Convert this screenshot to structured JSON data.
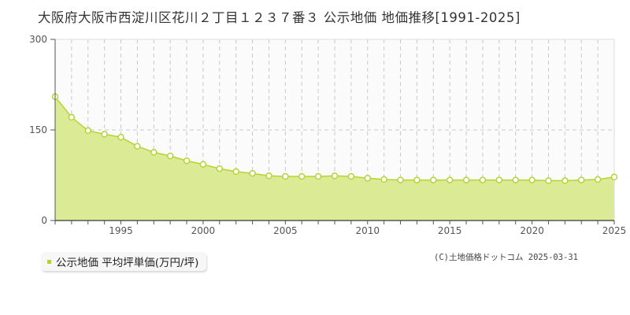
{
  "title": "大阪府大阪市西淀川区花川２丁目１２３７番３ 公示地価 地価推移[1991-2025]",
  "legend": {
    "label": "公示地価 平均坪単価(万円/坪)",
    "color": "#b5d335"
  },
  "copyright": "(C)土地価格ドットコム 2025-03-31",
  "colors": {
    "fill": "#dbeb95",
    "line": "#b5d335",
    "grid": "#c8c8c8",
    "axis": "#555555",
    "plot_bg": "#fbfbfb"
  },
  "chart_data": {
    "type": "area",
    "title": "大阪府大阪市西淀川区花川２丁目１２３７番３ 公示地価 地価推移[1991-2025]",
    "xlabel": "",
    "ylabel": "",
    "ylim": [
      0,
      300
    ],
    "xlim": [
      1991,
      2025
    ],
    "yticks": [
      0,
      150,
      300
    ],
    "xticks": [
      1995,
      2000,
      2005,
      2010,
      2015,
      2020,
      2025
    ],
    "grid": true,
    "legend_position": "bottom-left",
    "series": [
      {
        "name": "公示地価 平均坪単価(万円/坪)",
        "x": [
          1991,
          1992,
          1993,
          1994,
          1995,
          1996,
          1997,
          1998,
          1999,
          2000,
          2001,
          2002,
          2003,
          2004,
          2005,
          2006,
          2007,
          2008,
          2009,
          2010,
          2011,
          2012,
          2013,
          2014,
          2015,
          2016,
          2017,
          2018,
          2019,
          2020,
          2021,
          2022,
          2023,
          2024,
          2025
        ],
        "values": [
          205,
          171,
          149,
          143,
          138,
          123,
          113,
          107,
          99,
          93,
          86,
          81,
          78,
          74,
          73,
          73,
          73,
          74,
          73,
          70,
          68,
          67,
          67,
          67,
          67,
          67,
          67,
          67,
          67,
          67,
          66,
          66,
          67,
          68,
          72
        ]
      }
    ]
  }
}
